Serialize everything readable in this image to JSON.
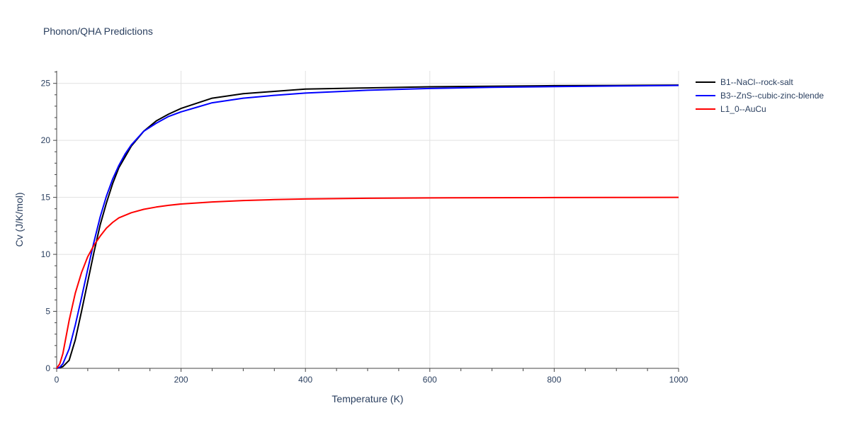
{
  "chart_data": {
    "type": "line",
    "title": "Phonon/QHA Predictions",
    "xlabel": "Temperature (K)",
    "ylabel": "Cv (J/K/mol)",
    "xlim": [
      0,
      1000
    ],
    "ylim": [
      0,
      26.1
    ],
    "xticks": [
      0,
      200,
      400,
      600,
      800,
      1000
    ],
    "yticks": [
      0,
      5,
      10,
      15,
      20,
      25
    ],
    "grid": true,
    "legend_position": "top-right outside",
    "series": [
      {
        "name": "B1--NaCl--rock-salt",
        "color": "#000000",
        "x": [
          0,
          10,
          20,
          30,
          40,
          50,
          60,
          70,
          80,
          90,
          100,
          120,
          140,
          160,
          180,
          200,
          250,
          300,
          350,
          400,
          500,
          600,
          700,
          800,
          900,
          1000
        ],
        "y": [
          0,
          0.15,
          0.7,
          2.5,
          5.0,
          7.6,
          10.2,
          12.6,
          14.5,
          16.2,
          17.6,
          19.5,
          20.8,
          21.7,
          22.3,
          22.8,
          23.7,
          24.1,
          24.3,
          24.5,
          24.6,
          24.7,
          24.75,
          24.8,
          24.82,
          24.85
        ]
      },
      {
        "name": "B3--ZnS--cubic-zinc-blende",
        "color": "#0000ff",
        "x": [
          0,
          5,
          10,
          20,
          30,
          40,
          50,
          60,
          70,
          80,
          90,
          100,
          110,
          120,
          140,
          160,
          180,
          200,
          225,
          250,
          300,
          350,
          400,
          500,
          600,
          700,
          800,
          900,
          1000
        ],
        "y": [
          0,
          0.1,
          0.4,
          1.7,
          3.8,
          6.2,
          8.7,
          11.1,
          13.3,
          15.1,
          16.6,
          17.8,
          18.8,
          19.6,
          20.8,
          21.5,
          22.1,
          22.5,
          22.9,
          23.3,
          23.7,
          23.95,
          24.15,
          24.4,
          24.55,
          24.65,
          24.72,
          24.77,
          24.82
        ]
      },
      {
        "name": "L1_0--AuCu",
        "color": "#ff0000",
        "x": [
          0,
          5,
          10,
          20,
          30,
          40,
          50,
          60,
          70,
          80,
          90,
          100,
          120,
          140,
          160,
          180,
          200,
          250,
          300,
          350,
          400,
          500,
          600,
          700,
          800,
          900,
          1000
        ],
        "y": [
          0,
          0.4,
          1.3,
          4.2,
          6.6,
          8.4,
          9.8,
          10.8,
          11.6,
          12.3,
          12.8,
          13.2,
          13.65,
          13.95,
          14.15,
          14.3,
          14.42,
          14.6,
          14.72,
          14.8,
          14.86,
          14.92,
          14.95,
          14.97,
          14.98,
          14.99,
          15.0
        ]
      }
    ]
  }
}
